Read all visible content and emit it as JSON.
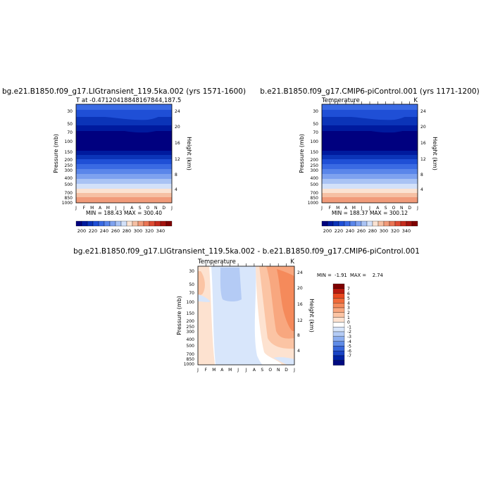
{
  "chart_data": [
    {
      "type": "heatmap",
      "title": "bg.e21.B1850.f09_g17.LIGtransient_119.5ka.002 (yrs 1571-1600)",
      "subtitle_left": "T at -0.47120418848167844,187.5",
      "subtitle_right": "",
      "xlabel": "",
      "ylabel": "Pressure (mb)",
      "ylabel_right": "Height (km)",
      "x_ticks": [
        "J",
        "F",
        "M",
        "A",
        "M",
        "J",
        "J",
        "A",
        "S",
        "O",
        "N",
        "D",
        "J"
      ],
      "y_ticks": [
        30,
        50,
        70,
        100,
        150,
        200,
        250,
        300,
        400,
        500,
        700,
        850,
        1000
      ],
      "right_ticks": [
        24,
        20,
        16,
        12,
        8,
        4
      ],
      "ylim": [
        1000,
        20
      ],
      "y_scale": "log",
      "stats": "MIN = 188.43  MAX = 300.40",
      "colorbar": {
        "orientation": "horizontal",
        "labels": [
          "200",
          "220",
          "240",
          "260",
          "280",
          "300",
          "320",
          "340"
        ],
        "levels": [
          190,
          200,
          210,
          220,
          230,
          240,
          250,
          260,
          270,
          280,
          290,
          300,
          310,
          320,
          330,
          340,
          350
        ],
        "colors": [
          "#00007f",
          "#001a9e",
          "#0b34b8",
          "#1f4fd6",
          "#3a6ae3",
          "#5a86ea",
          "#7ea2ef",
          "#a9c3f4",
          "#d3e1f9",
          "#fbe3d2",
          "#f6c0a3",
          "#f19b7a",
          "#ea7555",
          "#de4b33",
          "#c52b1d",
          "#a4130e",
          "#7f0000"
        ]
      }
    },
    {
      "type": "heatmap",
      "title": "b.e21.B1850.f09_g17.CMIP6-piControl.001 (yrs 1171-1200)",
      "subtitle_left": "Temperature",
      "subtitle_right": "K",
      "xlabel": "",
      "ylabel": "Pressure (mb)",
      "ylabel_right": "Height (km)",
      "x_ticks": [
        "J",
        "F",
        "M",
        "A",
        "M",
        "J",
        "J",
        "A",
        "S",
        "O",
        "N",
        "D",
        "J"
      ],
      "y_ticks": [
        30,
        50,
        70,
        100,
        150,
        200,
        250,
        300,
        400,
        500,
        700,
        850,
        1000
      ],
      "right_ticks": [
        24,
        20,
        16,
        12,
        8,
        4
      ],
      "ylim": [
        1000,
        20
      ],
      "y_scale": "log",
      "stats": "MIN = 188.37  MAX = 300.12",
      "colorbar": {
        "orientation": "horizontal",
        "labels": [
          "200",
          "220",
          "240",
          "260",
          "280",
          "300",
          "320",
          "340"
        ],
        "levels": [
          190,
          200,
          210,
          220,
          230,
          240,
          250,
          260,
          270,
          280,
          290,
          300,
          310,
          320,
          330,
          340,
          350
        ],
        "colors": [
          "#00007f",
          "#001a9e",
          "#0b34b8",
          "#1f4fd6",
          "#3a6ae3",
          "#5a86ea",
          "#7ea2ef",
          "#a9c3f4",
          "#d3e1f9",
          "#fbe3d2",
          "#f6c0a3",
          "#f19b7a",
          "#ea7555",
          "#de4b33",
          "#c52b1d",
          "#a4130e",
          "#7f0000"
        ]
      }
    },
    {
      "type": "heatmap",
      "title": "bg.e21.B1850.f09_g17.LIGtransient_119.5ka.002 - b.e21.B1850.f09_g17.CMIP6-piControl.001",
      "subtitle_left": "Temperature",
      "subtitle_right": "K",
      "xlabel": "",
      "ylabel": "Pressure (mb)",
      "ylabel_right": "Height (km)",
      "x_ticks": [
        "J",
        "F",
        "M",
        "A",
        "M",
        "J",
        "J",
        "A",
        "S",
        "O",
        "N",
        "D",
        "J"
      ],
      "y_ticks": [
        30,
        50,
        70,
        100,
        150,
        200,
        250,
        300,
        400,
        500,
        700,
        850,
        1000
      ],
      "right_ticks": [
        24,
        20,
        16,
        12,
        8,
        4
      ],
      "ylim": [
        1000,
        20
      ],
      "y_scale": "log",
      "stats": "MIN =  -1.91  MAX =    2.74",
      "colorbar": {
        "orientation": "vertical",
        "labels": [
          "7",
          "6",
          "5",
          "4",
          "3",
          "2",
          "1",
          "0",
          "-1",
          "-2",
          "-3",
          "-4",
          "-5",
          "-6",
          "-7"
        ],
        "colors": [
          "#7f0000",
          "#b81a0f",
          "#e8481f",
          "#f06a3a",
          "#f58a5b",
          "#f8a77f",
          "#fbc4a4",
          "#fde2d0",
          "#ffffff",
          "#d8e6fb",
          "#b4cbf5",
          "#8caeef",
          "#5f8be6",
          "#3766da",
          "#1a44c5",
          "#0022a5",
          "#000a80"
        ]
      }
    }
  ]
}
